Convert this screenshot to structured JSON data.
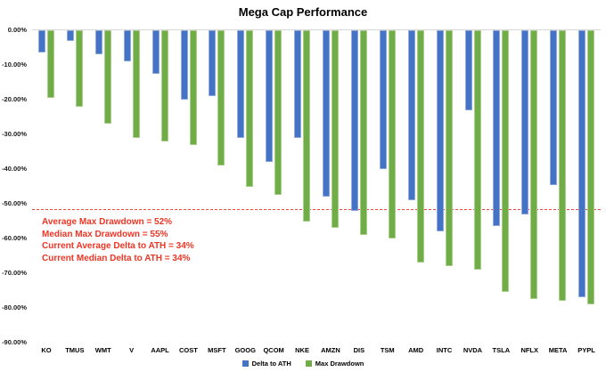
{
  "chart_data": {
    "type": "bar",
    "title": "Mega Cap Performance",
    "categories": [
      "KO",
      "TMUS",
      "WMT",
      "V",
      "AAPL",
      "COST",
      "MSFT",
      "GOOG",
      "QCOM",
      "NKE",
      "AMZN",
      "DIS",
      "TSM",
      "AMD",
      "INTC",
      "NVDA",
      "TSLA",
      "NFLX",
      "META",
      "PYPL"
    ],
    "series": [
      {
        "name": "Delta to ATH",
        "color": "#4472C4",
        "values": [
          -6.5,
          -3,
          -7,
          -9,
          -12.5,
          -20,
          -19,
          -31,
          -38,
          -31,
          -48,
          -52,
          -40,
          -49,
          -58,
          -23,
          -56.5,
          -53,
          -44.5,
          -77
        ]
      },
      {
        "name": "Max Drawdown",
        "color": "#70AD47",
        "values": [
          -19.5,
          -22,
          -27,
          -31,
          -32,
          -33,
          -39,
          -45,
          -47.5,
          -55,
          -57,
          -59,
          -60,
          -67,
          -68,
          -69,
          -75.5,
          -77.5,
          -78,
          -79
        ]
      }
    ],
    "y_axis_ticks": [
      "0.00%",
      "-10.00%",
      "-20.00%",
      "-30.00%",
      "-40.00%",
      "-50.00%",
      "-60.00%",
      "-70.00%",
      "-80.00%",
      "-90.00%"
    ],
    "ylim": [
      -90,
      0
    ],
    "xlabel": "",
    "ylabel": "",
    "grid": false,
    "legend_position": "bottom",
    "reference_line": {
      "value": -52,
      "color": "#f0443a",
      "style": "dashed"
    },
    "annotations": {
      "color": "#ee3524",
      "lines": [
        "Average Max Drawdown = 52%",
        "Median Max Drawdown = 55%",
        "Current Average Delta to ATH = 34%",
        "Current Median Delta to ATH = 34%"
      ]
    }
  }
}
